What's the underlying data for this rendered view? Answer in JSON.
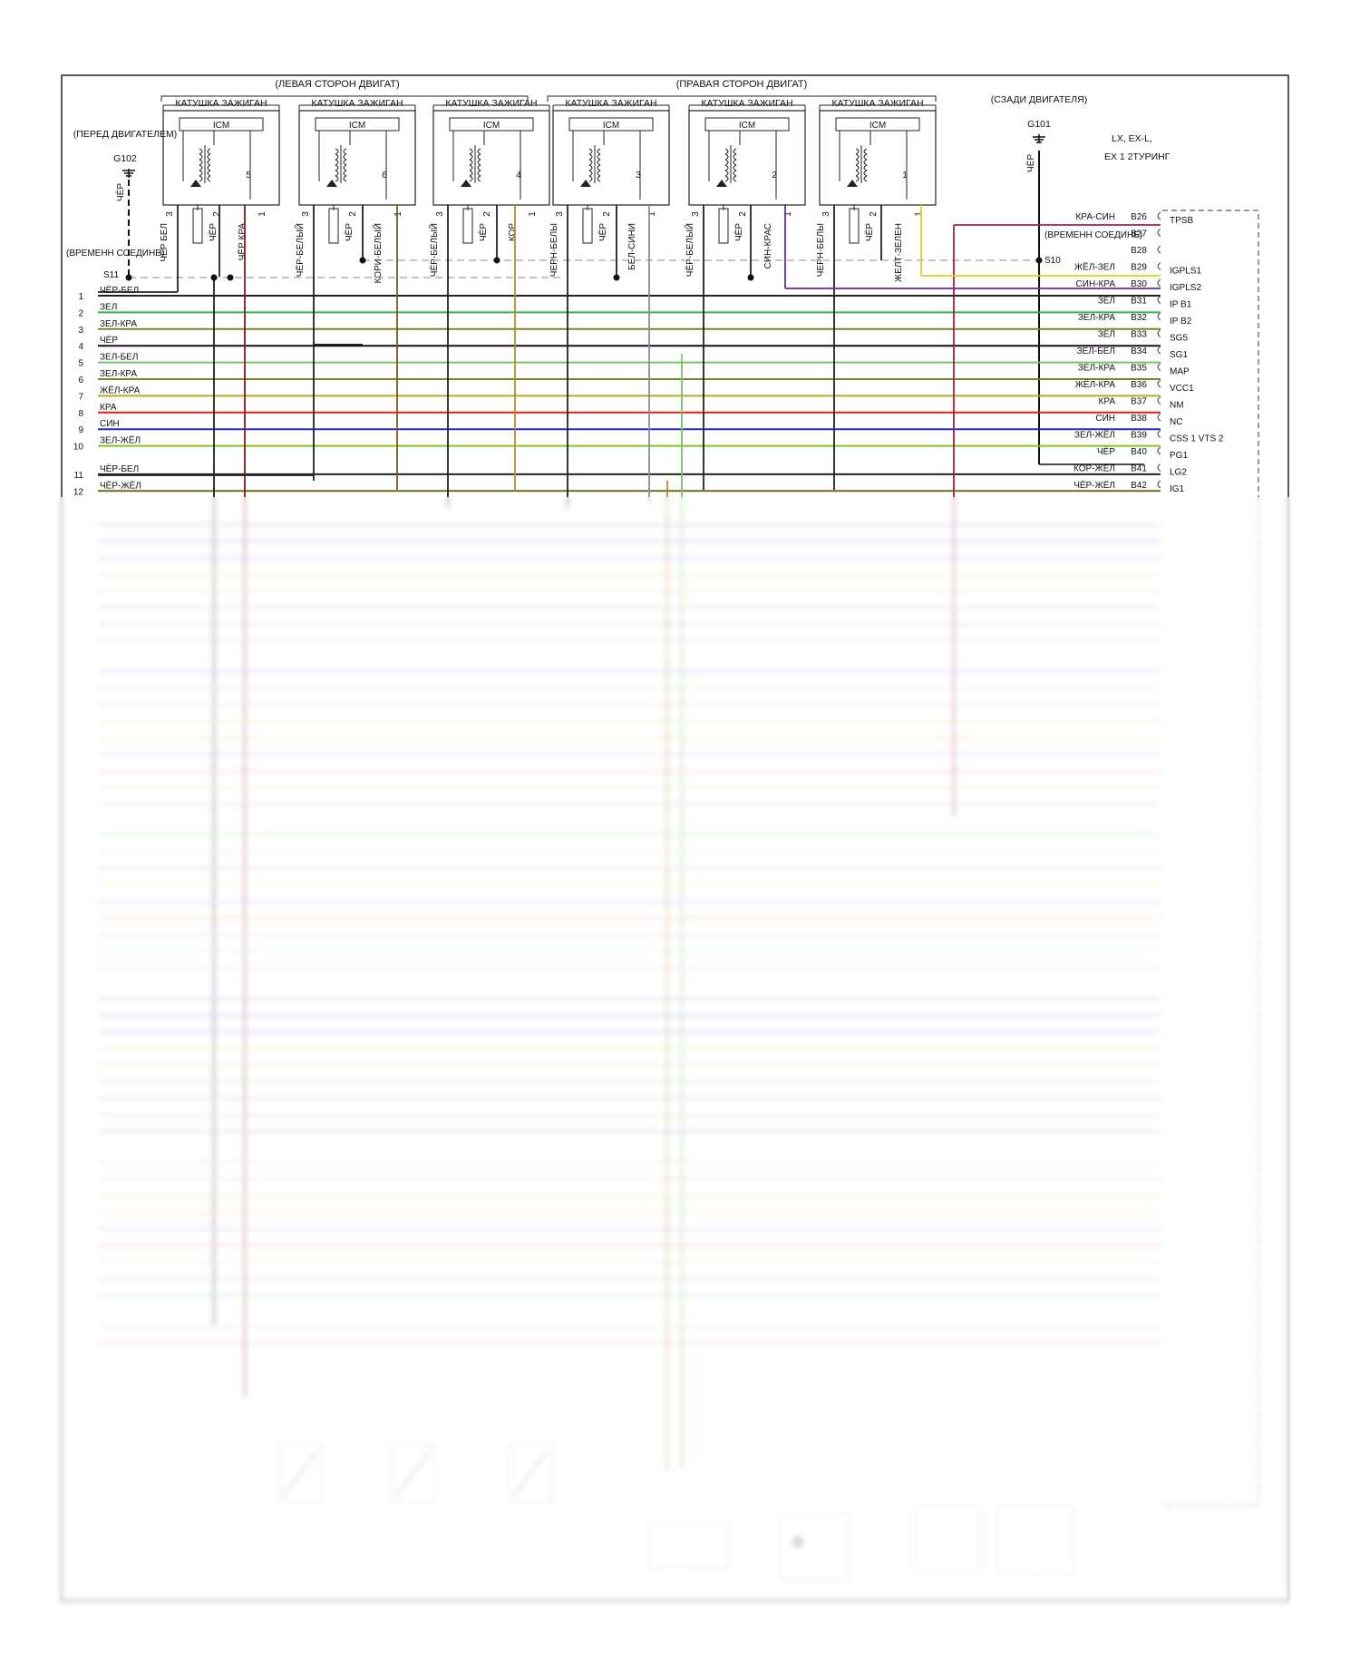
{
  "headers": {
    "left_bank": "(ЛЕВАЯ СТОРОН ДВИГАТ)",
    "right_bank": "(ПРАВАЯ СТОРОН ДВИГАТ)"
  },
  "coils": [
    {
      "title": "КАТУШКА ЗАЖИГАН",
      "icm": "ICM",
      "num": "5",
      "p3": "3",
      "p2": "2",
      "p1": "1",
      "w3": "ЧЁР БЕЛ",
      "w2": "ЧЁР",
      "w1": "ЧЁР КРА"
    },
    {
      "title": "КАТУШКА ЗАЖИГАН",
      "icm": "ICM",
      "num": "6",
      "p3": "3",
      "p2": "2",
      "p1": "1",
      "w3": "ЧЁР-БЕЛЫЙ",
      "w2": "ЧЁР",
      "w1": "КОРИ-БЕЛЫЙ"
    },
    {
      "title": "КАТУШКА ЗАЖИГАН",
      "icm": "ICM",
      "num": "4",
      "p3": "3",
      "p2": "2",
      "p1": "1",
      "w3": "ЧЁР-БЕЛЫЙ",
      "w2": "ЧЁР",
      "w1": "КОР"
    },
    {
      "title": "КАТУШКА ЗАЖИГАН",
      "icm": "ICM",
      "num": "3",
      "p3": "3",
      "p2": "2",
      "p1": "1",
      "w3": "ЧЕРН-БЕЛЫ",
      "w2": "ЧЁР",
      "w1": "БЕЛ-СИНИ"
    },
    {
      "title": "КАТУШКА ЗАЖИГАН",
      "icm": "ICM",
      "num": "2",
      "p3": "3",
      "p2": "2",
      "p1": "1",
      "w3": "ЧЁР-БЕЛЫЙ",
      "w2": "ЧЁР",
      "w1": "СИН-КРАС"
    },
    {
      "title": "КАТУШКА ЗАЖИГАН",
      "icm": "ICM",
      "num": "1",
      "p3": "3",
      "p2": "2",
      "p1": "1",
      "w3": "ЧЕРН-БЕЛЫ",
      "w2": "ЧЁР",
      "w1": "ЖЕЛТ-ЗЕЛЕН"
    }
  ],
  "grounds": {
    "front_label": "(ПЕРЕД ДВИГАТЕЛЕМ)",
    "front_id": "G102",
    "front_wire": "ЧЁР",
    "rear_label": "(СЗАДИ ДВИГАТЕЛЯ)",
    "rear_id": "G101",
    "rear_wire": "ЧЁР"
  },
  "splices": {
    "temp_joint_left": "(ВРЕМЕНН СОЕДИНЕ)",
    "left_id": "S11",
    "temp_joint_right": "(ВРЕМЕНН СОЕДИНЕ)",
    "right_id": "S10"
  },
  "trim": {
    "line1": "LX,  EX-L,",
    "line2": "EX 1 2ТУРИНГ"
  },
  "left_wires": [
    {
      "n": "1",
      "label": "ЧЁР-БЕЛ",
      "color": "#222222"
    },
    {
      "n": "2",
      "label": "ЗЕЛ",
      "color": "#2db84a"
    },
    {
      "n": "3",
      "label": "ЗЕЛ-КРА",
      "color": "#6e8a2a"
    },
    {
      "n": "4",
      "label": "ЧЁР",
      "color": "#111111"
    },
    {
      "n": "5",
      "label": "ЗЕЛ-БЕЛ",
      "color": "#77c466"
    },
    {
      "n": "6",
      "label": "ЗЕЛ-КРА",
      "color": "#6e8a2a"
    },
    {
      "n": "7",
      "label": "ЖЁЛ-КРА",
      "color": "#b9a72a"
    },
    {
      "n": "8",
      "label": "КРА",
      "color": "#e31b1b"
    },
    {
      "n": "9",
      "label": "СИН",
      "color": "#1f2fb0"
    },
    {
      "n": "10",
      "label": "ЗЕЛ-ЖЁЛ",
      "color": "#8ac12a"
    },
    {
      "n": "11",
      "label": "ЧЁР-БЕЛ",
      "color": "#222222"
    },
    {
      "n": "12",
      "label": "ЧЁР-ЖЁЛ",
      "color": "#6a6a1a"
    }
  ],
  "right_pins": [
    {
      "wire": "КРА-СИН",
      "pin": "B26",
      "sig": "TPSB",
      "color": "#a0204a"
    },
    {
      "wire": "",
      "pin": "B27",
      "sig": "",
      "color": ""
    },
    {
      "wire": "",
      "pin": "B28",
      "sig": "",
      "color": ""
    },
    {
      "wire": "ЖЁЛ-ЗЕЛ",
      "pin": "B29",
      "sig": "IGPLS1",
      "color": "#d8d820"
    },
    {
      "wire": "СИН-КРА",
      "pin": "B30",
      "sig": "IGPLS2",
      "color": "#6a2aa0"
    },
    {
      "wire": "ЗЕЛ",
      "pin": "B31",
      "sig": "IP B1",
      "color": "#2db84a"
    },
    {
      "wire": "ЗЕЛ-КРА",
      "pin": "B32",
      "sig": "IP B2",
      "color": "#6e8a2a"
    },
    {
      "wire": "ЗЕЛ",
      "pin": "B33",
      "sig": "SG5",
      "color": "#2db84a"
    },
    {
      "wire": "ЗЕЛ-БЕЛ",
      "pin": "B34",
      "sig": "SG1",
      "color": "#77c466"
    },
    {
      "wire": "ЗЕЛ-КРА",
      "pin": "B35",
      "sig": "MAP",
      "color": "#6e8a2a"
    },
    {
      "wire": "ЖЁЛ-КРА",
      "pin": "B36",
      "sig": "VCC1",
      "color": "#b9a72a"
    },
    {
      "wire": "КРА",
      "pin": "B37",
      "sig": "NM",
      "color": "#e31b1b"
    },
    {
      "wire": "СИН",
      "pin": "B38",
      "sig": "NC",
      "color": "#1f2fb0"
    },
    {
      "wire": "ЗЕЛ-ЖЁЛ",
      "pin": "B39",
      "sig": "CSS  1  VTS  2",
      "color": "#8ac12a"
    },
    {
      "wire": "ЧЁР",
      "pin": "B40",
      "sig": "PG1",
      "color": "#111111"
    },
    {
      "wire": "КОР-ЖЁЛ",
      "pin": "B41",
      "sig": "LG2",
      "color": "#7a5a1a"
    },
    {
      "wire": "ЧЁР-ЖЁЛ",
      "pin": "B42",
      "sig": "IG1",
      "color": "#6a6a1a"
    }
  ]
}
